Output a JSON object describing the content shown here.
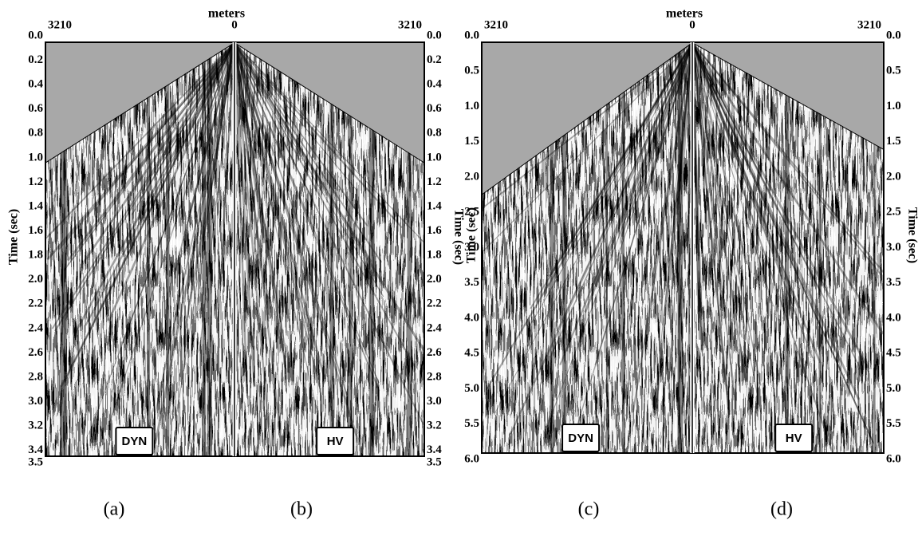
{
  "figures": [
    {
      "top_axis": {
        "title": "meters",
        "left": "3210",
        "center": "0",
        "right": "3210"
      },
      "left_axis": {
        "title": "Time (sec)",
        "ticks": [
          "0.0",
          "0.2",
          "0.4",
          "0.6",
          "0.8",
          "1.0",
          "1.2",
          "1.4",
          "1.6",
          "1.8",
          "2.0",
          "2.2",
          "2.4",
          "2.6",
          "2.8",
          "3.0",
          "3.2",
          "3.4",
          "3.5"
        ]
      },
      "right_axis": {
        "title": "Time (sec)",
        "ticks": [
          "0.0",
          "0.2",
          "0.4",
          "0.6",
          "0.8",
          "1.0",
          "1.2",
          "1.4",
          "1.6",
          "1.8",
          "2.0",
          "2.2",
          "2.4",
          "2.6",
          "2.8",
          "3.0",
          "3.2",
          "3.4",
          "3.5"
        ]
      },
      "panels": [
        {
          "tag": "DYN",
          "caption": "(a)"
        },
        {
          "tag": "HV",
          "caption": "(b)"
        }
      ]
    },
    {
      "top_axis": {
        "title": "meters",
        "left": "3210",
        "center": "0",
        "right": "3210"
      },
      "left_axis": {
        "title": "Time (sec)",
        "ticks": [
          "0.0",
          "0.5",
          "1.0",
          "1.5",
          "2.0",
          "2.5",
          "3.0",
          "3.5",
          "4.0",
          "4.5",
          "5.0",
          "5.5",
          "6.0"
        ]
      },
      "right_axis": {
        "title": "Time (sec)",
        "ticks": [
          "0.0",
          "0.5",
          "1.0",
          "1.5",
          "2.0",
          "2.5",
          "3.0",
          "3.5",
          "4.0",
          "4.5",
          "5.0",
          "5.5",
          "6.0"
        ]
      },
      "panels": [
        {
          "tag": "DYN",
          "caption": "(c)"
        },
        {
          "tag": "HV",
          "caption": "(d)"
        }
      ]
    }
  ]
}
